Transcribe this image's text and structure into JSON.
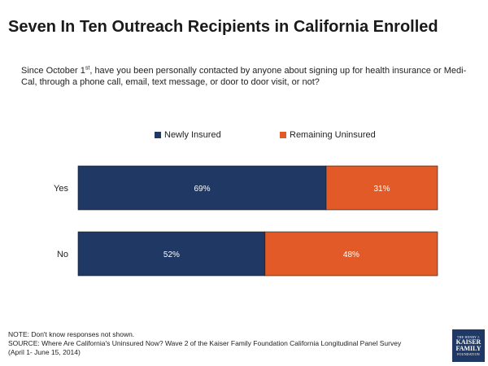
{
  "title": "Seven In Ten Outreach Recipients in California Enrolled",
  "question": {
    "before_sup": "Since October 1",
    "sup": "st",
    "after_sup": ", have you been personally contacted by anyone about signing up for health insurance or Medi-Cal, through a phone call, email, text message, or door to door visit, or not?"
  },
  "colors": {
    "newly_insured": "#1f3864",
    "remaining_uninsured": "#e15a27"
  },
  "chart_data": {
    "type": "bar",
    "orientation": "horizontal",
    "stacked": true,
    "title": "Seven In Ten Outreach Recipients in California Enrolled",
    "categories": [
      "Yes",
      "No"
    ],
    "series": [
      {
        "name": "Newly Insured",
        "values": [
          69,
          52
        ],
        "labels": [
          "69%",
          "52%"
        ]
      },
      {
        "name": "Remaining Uninsured",
        "values": [
          31,
          48
        ],
        "labels": [
          "31%",
          "48%"
        ]
      }
    ],
    "xlim": [
      0,
      100
    ],
    "xlabel": "",
    "ylabel": "",
    "grid": false,
    "legend": "top-center"
  },
  "notes": {
    "note": "NOTE: Don't know responses not shown.",
    "source": "SOURCE: Where Are California's Uninsured Now? Wave 2 of the Kaiser Family Foundation California Longitudinal Panel Survey (April 1- June 15, 2014)"
  },
  "logo": {
    "line1": "THE HENRY J.",
    "line2": "KAISER",
    "line3": "FAMILY",
    "line4": "FOUNDATION"
  }
}
